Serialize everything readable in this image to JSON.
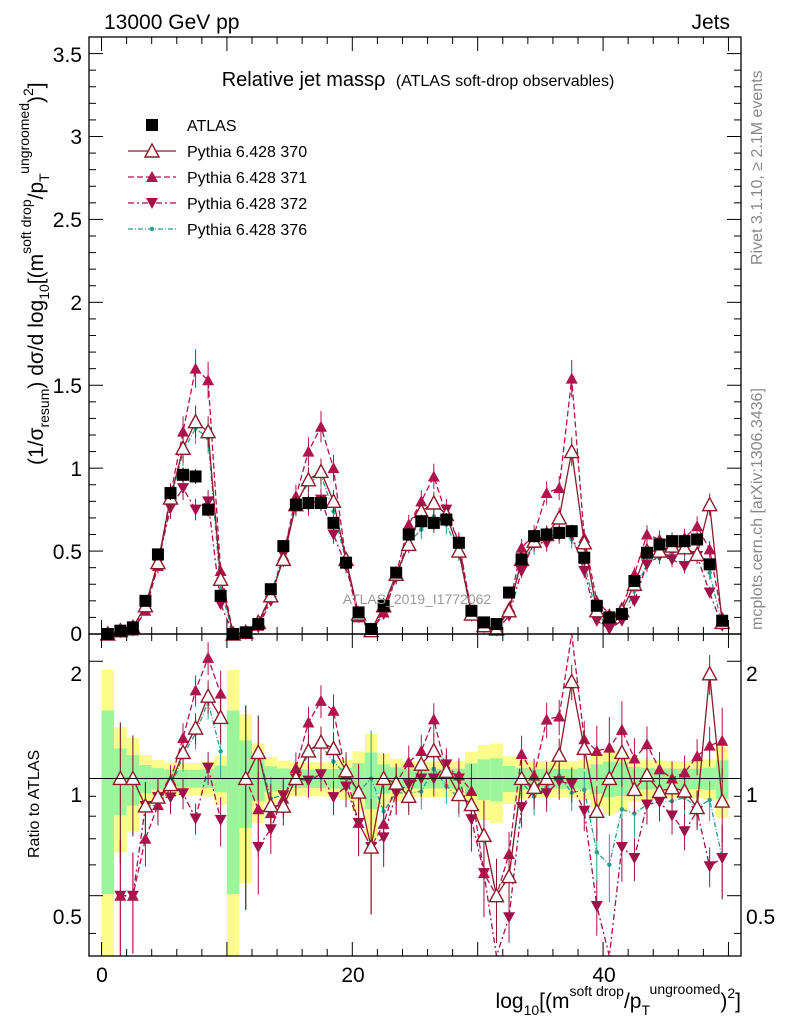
{
  "header": {
    "energy": "13000 GeV pp",
    "process": "Jets"
  },
  "side_labels": {
    "rivet": "Rivet 3.1.10, ≥ 2.1M events",
    "site": "mcplots.cern.ch [arXiv:1306.3436]"
  },
  "chart_data": {
    "type": "line",
    "title_main": "Relative jet massρ",
    "title_sub": "(ATLAS soft-drop observables)",
    "watermark": "ATLAS_2019_I1772062",
    "ylabel": "(1/σresum) dσ/d log10[(m soft drop/pT ungroomed)2]",
    "ylabel_parts": {
      "a": "(1/σ",
      "b": "resum",
      "c": ") dσ/d log",
      "d": "10",
      "e": "[(m",
      "f": "soft drop",
      "g": "/p",
      "h": "T",
      "i": "ungroomed",
      "j": ")",
      "k": "2",
      "l": "]"
    },
    "xlabel_parts": {
      "a": "log",
      "b": "10",
      "c": "[(m",
      "d": "soft drop",
      "e": "/p",
      "f": "T",
      "g": "ungroomed",
      "h": ")",
      "i": "2",
      "j": "]"
    },
    "ratio_ylabel": "Ratio to ATLAS",
    "xlim": [
      -1,
      51
    ],
    "ylim": [
      0,
      3.6
    ],
    "ratio_ylim": [
      0.35,
      2.35
    ],
    "ratio_log": true,
    "x_ticks": [
      "0",
      "20",
      "40"
    ],
    "y_ticks": [
      "0",
      "0.5",
      "1",
      "1.5",
      "2",
      "2.5",
      "3",
      "3.5"
    ],
    "ratio_ticks": [
      "0.5",
      "1",
      "2"
    ],
    "legend_position": "top-left",
    "x": [
      0.5,
      1.5,
      2.5,
      3.5,
      4.5,
      5.5,
      6.5,
      7.5,
      8.5,
      9.5,
      10.5,
      11.5,
      12.5,
      13.5,
      14.5,
      15.5,
      16.5,
      17.5,
      18.5,
      19.5,
      20.5,
      21.5,
      22.5,
      23.5,
      24.5,
      25.5,
      26.5,
      27.5,
      28.5,
      29.5,
      30.5,
      31.5,
      32.5,
      33.5,
      34.5,
      35.5,
      36.5,
      37.5,
      38.5,
      39.5,
      40.5,
      41.5,
      42.5,
      43.5,
      44.5,
      45.5,
      46.5,
      47.5,
      48.5,
      49.5
    ],
    "series": [
      {
        "name": "ATLAS",
        "color": "#000000",
        "marker": "square",
        "values": [
          0.0,
          0.02,
          0.04,
          0.2,
          0.48,
          0.85,
          0.96,
          0.95,
          0.75,
          0.23,
          0.0,
          0.01,
          0.06,
          0.27,
          0.53,
          0.78,
          0.79,
          0.79,
          0.67,
          0.43,
          0.13,
          0.03,
          0.17,
          0.37,
          0.6,
          0.68,
          0.67,
          0.69,
          0.55,
          0.14,
          0.07,
          0.06,
          0.25,
          0.45,
          0.59,
          0.6,
          0.61,
          0.62,
          0.46,
          0.17,
          0.1,
          0.12,
          0.32,
          0.49,
          0.54,
          0.56,
          0.56,
          0.57,
          0.42,
          0.08
        ]
      },
      {
        "name": "Pythia 6.428 370",
        "color": "#8b1a2b",
        "marker": "triangle-open",
        "values": [
          0.0,
          0.02,
          0.04,
          0.17,
          0.43,
          0.82,
          1.12,
          1.28,
          1.22,
          0.33,
          0.0,
          0.01,
          0.07,
          0.23,
          0.45,
          0.78,
          0.93,
          0.98,
          0.8,
          0.45,
          0.12,
          0.02,
          0.17,
          0.36,
          0.54,
          0.74,
          0.79,
          0.72,
          0.5,
          0.12,
          0.05,
          0.03,
          0.14,
          0.45,
          0.56,
          0.6,
          0.7,
          1.1,
          0.55,
          0.14,
          0.1,
          0.14,
          0.3,
          0.5,
          0.5,
          0.53,
          0.52,
          0.48,
          0.78,
          0.07
        ]
      },
      {
        "name": "Pythia 6.428 371",
        "color": "#b0134d",
        "marker": "triangle-up",
        "values": [
          0.0,
          0.01,
          0.02,
          0.14,
          0.41,
          0.84,
          1.22,
          1.6,
          1.53,
          0.38,
          0.0,
          0.01,
          0.05,
          0.22,
          0.47,
          0.83,
          1.1,
          1.25,
          1.0,
          0.44,
          0.1,
          0.02,
          0.13,
          0.36,
          0.66,
          0.8,
          0.95,
          0.72,
          0.56,
          0.13,
          0.04,
          0.03,
          0.16,
          0.52,
          0.6,
          0.85,
          0.88,
          1.54,
          0.58,
          0.2,
          0.12,
          0.16,
          0.36,
          0.6,
          0.57,
          0.56,
          0.58,
          0.65,
          0.51,
          0.1
        ]
      },
      {
        "name": "Pythia 6.428 372",
        "color": "#a0104b",
        "marker": "triangle-down",
        "values": [
          0.0,
          0.01,
          0.02,
          0.17,
          0.43,
          0.76,
          0.88,
          0.75,
          0.8,
          0.18,
          0.0,
          0.0,
          0.04,
          0.2,
          0.48,
          0.78,
          0.78,
          0.81,
          0.6,
          0.41,
          0.1,
          0.02,
          0.12,
          0.34,
          0.58,
          0.68,
          0.67,
          0.75,
          0.55,
          0.11,
          0.04,
          0.02,
          0.11,
          0.38,
          0.55,
          0.55,
          0.6,
          0.6,
          0.38,
          0.08,
          0.03,
          0.08,
          0.2,
          0.42,
          0.47,
          0.45,
          0.41,
          0.47,
          0.25,
          0.05
        ]
      },
      {
        "name": "Pythia 6.428 376",
        "color": "#2a9d8f",
        "marker": "dot",
        "values": [
          0.0,
          0.02,
          0.04,
          0.17,
          0.41,
          0.8,
          1.1,
          1.24,
          1.18,
          0.27,
          0.0,
          0.01,
          0.07,
          0.24,
          0.48,
          0.79,
          0.91,
          0.96,
          0.74,
          0.44,
          0.12,
          0.03,
          0.14,
          0.34,
          0.55,
          0.63,
          0.71,
          0.66,
          0.49,
          0.12,
          0.05,
          0.03,
          0.14,
          0.44,
          0.53,
          0.57,
          0.62,
          0.57,
          0.43,
          0.11,
          0.06,
          0.1,
          0.26,
          0.42,
          0.47,
          0.49,
          0.5,
          0.48,
          0.37,
          0.05
        ]
      }
    ]
  }
}
